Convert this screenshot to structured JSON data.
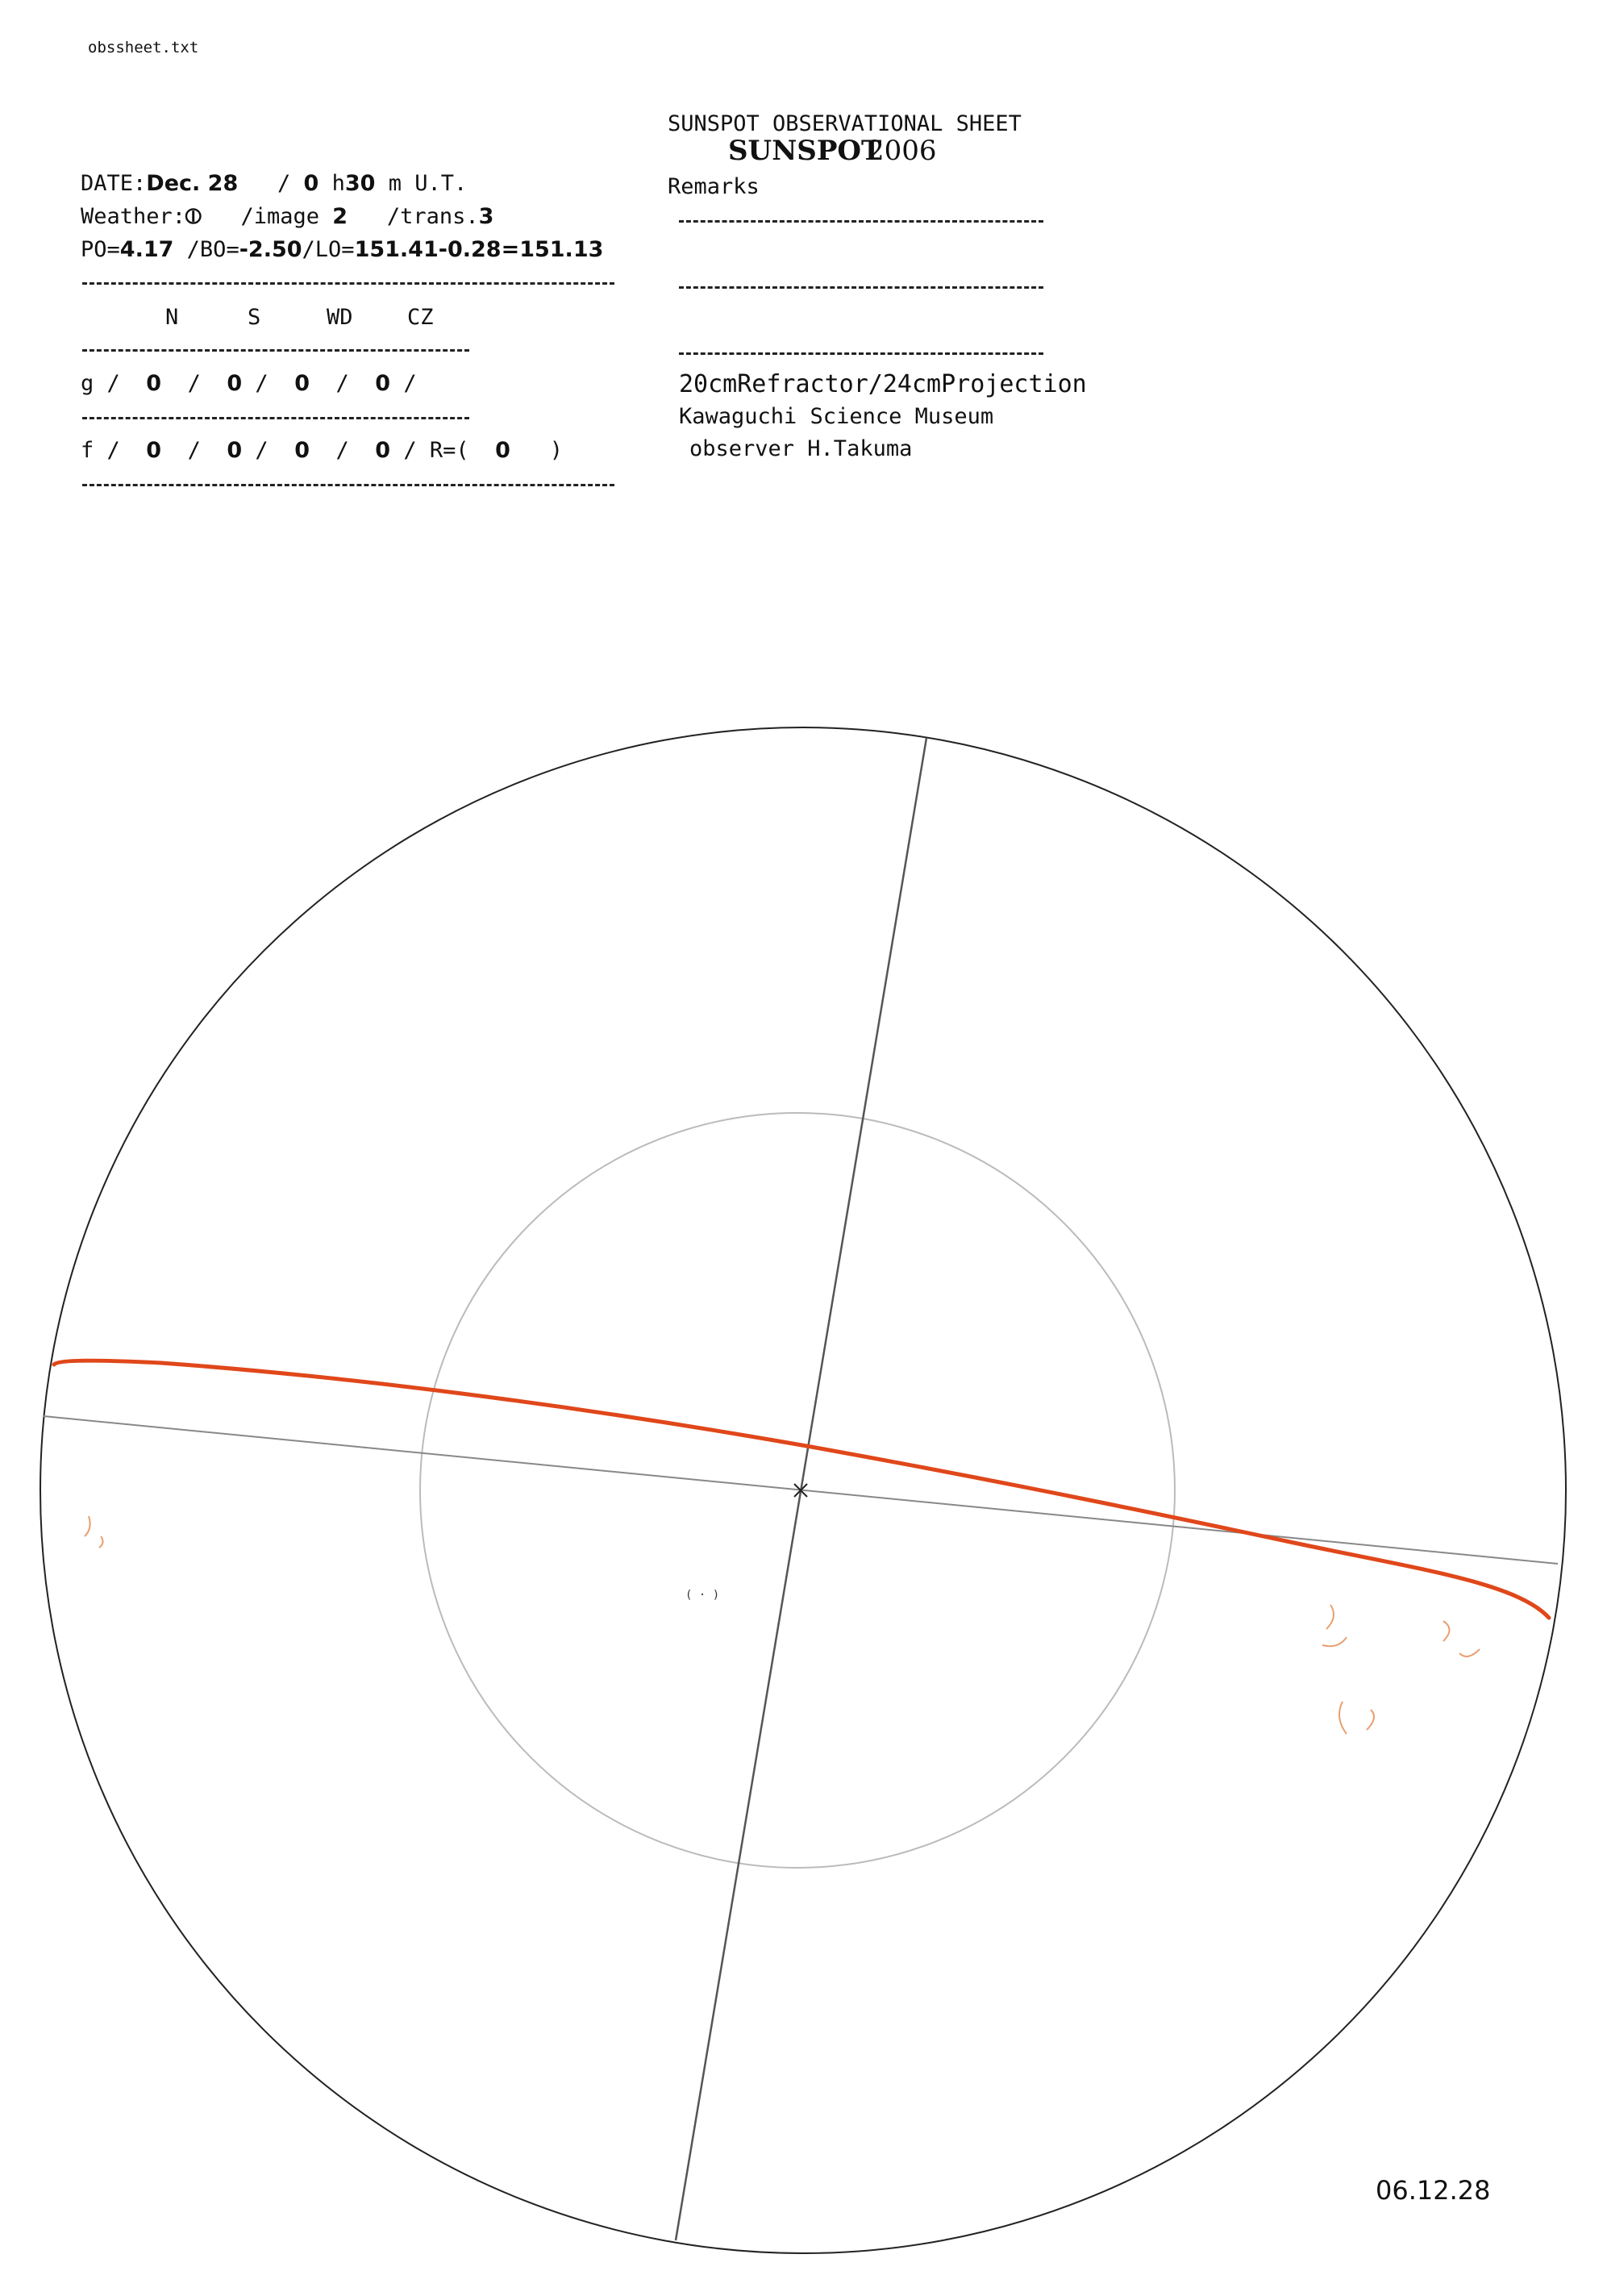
{
  "file_name": "obssheet.txt",
  "sheet": {
    "title": "SUNSPOT OBSERVATIONAL SHEET",
    "subtitle": "SUNSPOT",
    "year": "2006"
  },
  "observation": {
    "date_label": "DATE:",
    "date_value": "Dec. 28",
    "time_hours": "0",
    "time_h": "h",
    "time_minutes": "30",
    "time_m": "m",
    "time_suffix": "U.T.",
    "weather_label": "Weather:",
    "weather_value": "⦶",
    "image_label": "/image",
    "image_value": "2",
    "trans_label": "/trans.",
    "trans_value": "3",
    "po_label": "PO=",
    "po_value": "4.17",
    "bo_label": "/BO=",
    "bo_value": "-2.50",
    "lo_label": "/LO=",
    "lo_value": "151.41-0.28=151.13"
  },
  "counts": {
    "headers": [
      "N",
      "S",
      "WD",
      "CZ"
    ],
    "g_label": "g",
    "g_values": [
      "0",
      "0",
      "0",
      "0"
    ],
    "f_label": "f",
    "f_values": [
      "0",
      "0",
      "0",
      "0"
    ],
    "r_label": "R=(",
    "r_value": "0",
    "r_close": ")"
  },
  "remarks": {
    "label": "Remarks"
  },
  "instrument": {
    "telescope": "20cmRefractor/24cmProjection",
    "site": "Kawaguchi Science Museum",
    "observer": "observer H.Takuma"
  },
  "drawing": {
    "date_stamp": "06.12.28",
    "line_color": "#e0471a"
  }
}
